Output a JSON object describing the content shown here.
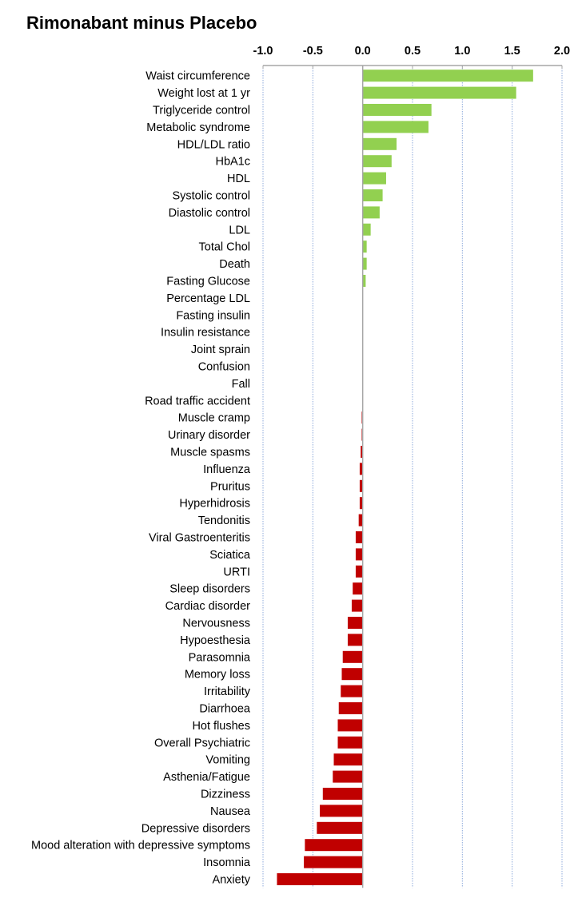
{
  "chart_data": {
    "type": "bar",
    "orientation": "horizontal",
    "title": "Rimonabant minus Placebo",
    "xlabel": "",
    "ylabel": "",
    "xlim": [
      -1.0,
      2.0
    ],
    "xticks": [
      -1.0,
      -0.5,
      0.0,
      0.5,
      1.0,
      1.5,
      2.0
    ],
    "xtick_labels": [
      "-1.0",
      "-0.5",
      "0.0",
      "0.5",
      "1.0",
      "1.5",
      "2.0"
    ],
    "x_axis_position": "top",
    "grid": true,
    "colors": {
      "positive": "#92d050",
      "negative": "#c00000",
      "grid": "#8eaadb",
      "axis": "#a6a6a6"
    },
    "categories": [
      "Waist circumference",
      "Weight lost at 1 yr",
      "Triglyceride control",
      "Metabolic syndrome",
      "HDL/LDL ratio",
      "HbA1c",
      "HDL",
      "Systolic control",
      "Diastolic control",
      "LDL",
      "Total Chol",
      "Death",
      "Fasting Glucose",
      "Percentage LDL",
      "Fasting insulin",
      "Insulin resistance",
      "Joint sprain",
      "Confusion",
      "Fall",
      "Road traffic accident",
      "Muscle cramp",
      "Urinary disorder",
      "Muscle spasms",
      "Influenza",
      "Pruritus",
      "Hyperhidrosis",
      "Tendonitis",
      "Viral Gastroenteritis",
      "Sciatica",
      "URTI",
      "Sleep disorders",
      "Cardiac disorder",
      "Nervousness",
      "Hypoesthesia",
      "Parasomnia",
      "Memory loss",
      "Irritability",
      "Diarrhoea",
      "Hot flushes",
      "Overall Psychiatric",
      "Vomiting",
      "Asthenia/Fatigue",
      "Dizziness",
      "Nausea",
      "Depressive disorders",
      "Mood alteration with depressive symptoms",
      "Insomnia",
      "Anxiety"
    ],
    "values": [
      1.71,
      1.54,
      0.69,
      0.66,
      0.34,
      0.29,
      0.235,
      0.2,
      0.17,
      0.08,
      0.04,
      0.04,
      0.03,
      0,
      0,
      0,
      0,
      0,
      0,
      -0.005,
      -0.01,
      -0.01,
      -0.02,
      -0.03,
      -0.03,
      -0.03,
      -0.04,
      -0.07,
      -0.07,
      -0.07,
      -0.1,
      -0.11,
      -0.15,
      -0.15,
      -0.2,
      -0.21,
      -0.22,
      -0.24,
      -0.25,
      -0.25,
      -0.29,
      -0.3,
      -0.4,
      -0.43,
      -0.46,
      -0.58,
      -0.59,
      -0.86
    ]
  }
}
